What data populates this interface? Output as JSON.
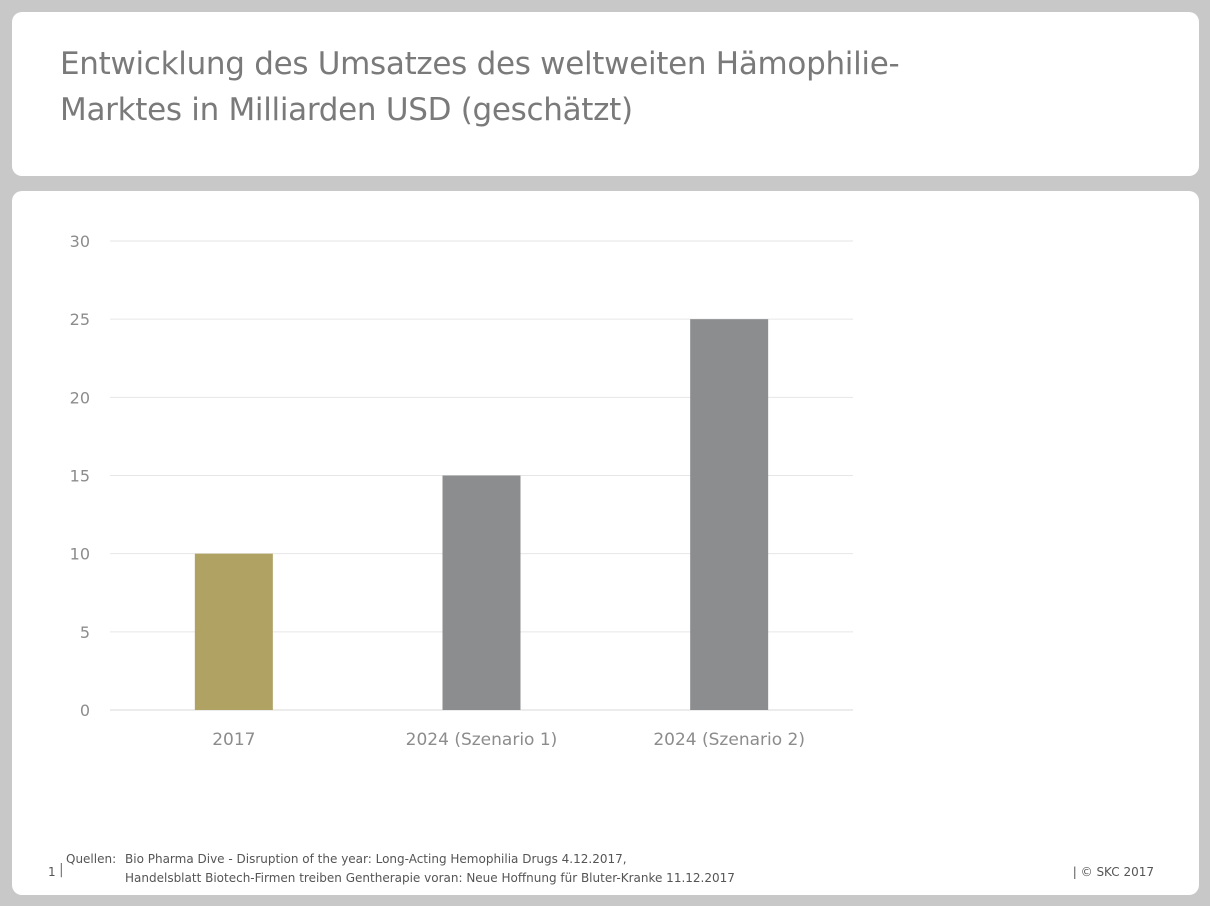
{
  "title": {
    "line1": "Entwicklung des Umsatzes des weltweiten Hämophilie-",
    "line2": "Marktes in Milliarden USD (geschätzt)"
  },
  "chart_data": {
    "type": "bar",
    "title": "Entwicklung des Umsatzes des weltweiten Hämophilie-Marktes in Milliarden USD (geschätzt)",
    "categories": [
      "2017",
      "2024 (Szenario 1)",
      "2024 (Szenario 2)"
    ],
    "values": [
      10,
      15,
      25
    ],
    "colors": [
      "#afa262",
      "#8c8d8f",
      "#8c8d8f"
    ],
    "xlabel": "",
    "ylabel": "",
    "ylim": [
      0,
      30
    ],
    "yticks": [
      0,
      5,
      10,
      15,
      20,
      25,
      30
    ],
    "grid": true,
    "legend": "none"
  },
  "footer": {
    "page_number": "1",
    "sources_label": "Quellen:",
    "sources": [
      "Bio Pharma Dive - Disruption of the year: Long-Acting Hemophilia Drugs 4.12.2017,",
      "Handelsblatt Biotech-Firmen treiben Gentherapie voran: Neue Hoffnung für Bluter-Kranke 11.12.2017"
    ],
    "copyright": "| © SKC 2017"
  }
}
